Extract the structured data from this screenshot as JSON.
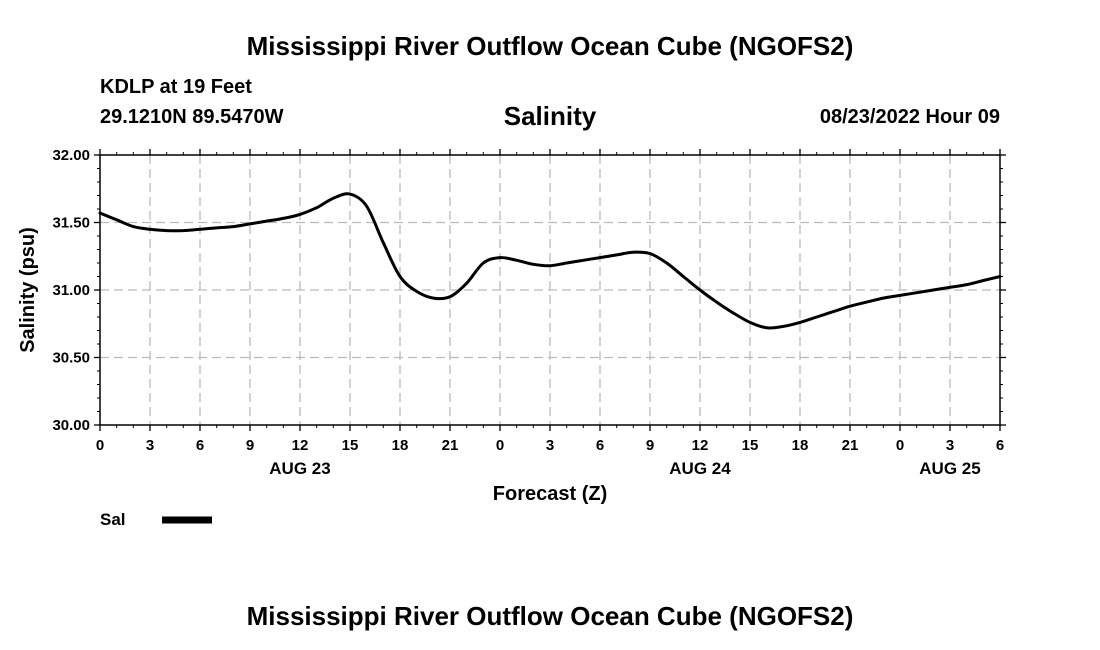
{
  "header": {
    "title": "Mississippi River Outflow Ocean Cube (NGOFS2)",
    "station": "KDLP at 19 Feet",
    "coords": "29.1210N  89.5470W",
    "timestamp": "08/23/2022 Hour 09"
  },
  "footer": {
    "title": "Mississippi River Outflow Ocean Cube (NGOFS2)"
  },
  "chart_data": {
    "type": "line",
    "title": "Salinity",
    "xlabel": "Forecast (Z)",
    "ylabel": "Salinity (psu)",
    "xlim": [
      0,
      54
    ],
    "ylim": [
      30.0,
      32.0
    ],
    "yticks": [
      "30.00",
      "30.50",
      "31.00",
      "31.50",
      "32.00"
    ],
    "xticks": [
      {
        "x": 0,
        "label": "0"
      },
      {
        "x": 3,
        "label": "3"
      },
      {
        "x": 6,
        "label": "6"
      },
      {
        "x": 9,
        "label": "9"
      },
      {
        "x": 12,
        "label": "12"
      },
      {
        "x": 15,
        "label": "15"
      },
      {
        "x": 18,
        "label": "18"
      },
      {
        "x": 21,
        "label": "21"
      },
      {
        "x": 24,
        "label": "0"
      },
      {
        "x": 27,
        "label": "3"
      },
      {
        "x": 30,
        "label": "6"
      },
      {
        "x": 33,
        "label": "9"
      },
      {
        "x": 36,
        "label": "12"
      },
      {
        "x": 39,
        "label": "15"
      },
      {
        "x": 42,
        "label": "18"
      },
      {
        "x": 45,
        "label": "21"
      },
      {
        "x": 48,
        "label": "0"
      },
      {
        "x": 51,
        "label": "3"
      },
      {
        "x": 54,
        "label": "6"
      }
    ],
    "date_labels": [
      {
        "x": 12,
        "label": "AUG 23"
      },
      {
        "x": 36,
        "label": "AUG 24"
      },
      {
        "x": 51,
        "label": "AUG 25"
      }
    ],
    "grid": true,
    "legend": {
      "position": "bottom-left"
    },
    "series": [
      {
        "name": "Sal",
        "color": "#000000",
        "x": [
          0,
          1,
          2,
          3,
          4,
          5,
          6,
          7,
          8,
          9,
          10,
          11,
          12,
          13,
          14,
          15,
          16,
          17,
          18,
          19,
          20,
          21,
          22,
          23,
          24,
          25,
          26,
          27,
          28,
          29,
          30,
          31,
          32,
          33,
          34,
          35,
          36,
          37,
          38,
          39,
          40,
          41,
          42,
          43,
          44,
          45,
          46,
          47,
          48,
          49,
          50,
          51,
          52,
          53,
          54
        ],
        "values": [
          31.57,
          31.52,
          31.47,
          31.45,
          31.44,
          31.44,
          31.45,
          31.46,
          31.47,
          31.49,
          31.51,
          31.53,
          31.56,
          31.61,
          31.68,
          31.71,
          31.62,
          31.35,
          31.1,
          30.99,
          30.94,
          30.95,
          31.05,
          31.2,
          31.24,
          31.22,
          31.19,
          31.18,
          31.2,
          31.22,
          31.24,
          31.26,
          31.28,
          31.27,
          31.2,
          31.1,
          31.0,
          30.91,
          30.83,
          30.76,
          30.72,
          30.73,
          30.76,
          30.8,
          30.84,
          30.88,
          30.91,
          30.94,
          30.96,
          30.98,
          31.0,
          31.02,
          31.04,
          31.07,
          31.1
        ]
      }
    ]
  }
}
